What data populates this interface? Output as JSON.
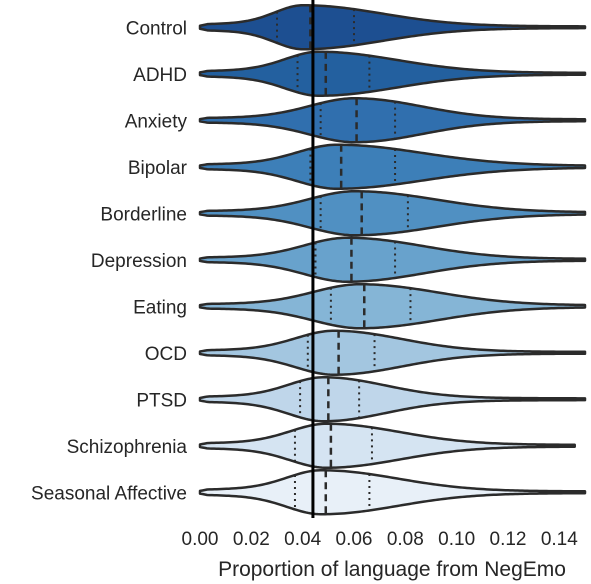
{
  "chart_data": {
    "type": "violin",
    "orientation": "horizontal",
    "xlabel": "Proportion of language from NegEmo",
    "ylabel": "",
    "xlim": [
      0.0,
      0.15
    ],
    "x_ticks": [
      "0.00",
      "0.02",
      "0.04",
      "0.06",
      "0.08",
      "0.10",
      "0.12",
      "0.14"
    ],
    "x_tick_values": [
      0.0,
      0.02,
      0.04,
      0.06,
      0.08,
      0.1,
      0.12,
      0.14
    ],
    "reference_line_x": 0.044,
    "grid": false,
    "categories": [
      "Control",
      "ADHD",
      "Anxiety",
      "Bipolar",
      "Borderline",
      "Depression",
      "Eating",
      "OCD",
      "PTSD",
      "Schizophrenia",
      "Seasonal Affective"
    ],
    "series": [
      {
        "q1": 0.03,
        "median": 0.043,
        "q3": 0.06,
        "mode": 0.04,
        "max": 0.15,
        "color": "#1d4f91"
      },
      {
        "q1": 0.038,
        "median": 0.049,
        "q3": 0.066,
        "mode": 0.046,
        "max": 0.15,
        "color": "#23609f"
      },
      {
        "q1": 0.047,
        "median": 0.061,
        "q3": 0.076,
        "mode": 0.06,
        "max": 0.15,
        "color": "#306fae"
      },
      {
        "q1": 0.043,
        "median": 0.055,
        "q3": 0.076,
        "mode": 0.053,
        "max": 0.15,
        "color": "#3d7fb8"
      },
      {
        "q1": 0.047,
        "median": 0.063,
        "q3": 0.081,
        "mode": 0.06,
        "max": 0.15,
        "color": "#5090c2"
      },
      {
        "q1": 0.045,
        "median": 0.059,
        "q3": 0.076,
        "mode": 0.057,
        "max": 0.15,
        "color": "#68a2cc"
      },
      {
        "q1": 0.051,
        "median": 0.064,
        "q3": 0.082,
        "mode": 0.062,
        "max": 0.15,
        "color": "#85b5d6"
      },
      {
        "q1": 0.042,
        "median": 0.054,
        "q3": 0.068,
        "mode": 0.052,
        "max": 0.15,
        "color": "#a3c6e0"
      },
      {
        "q1": 0.039,
        "median": 0.05,
        "q3": 0.062,
        "mode": 0.048,
        "max": 0.15,
        "color": "#bfd6ea"
      },
      {
        "q1": 0.037,
        "median": 0.051,
        "q3": 0.067,
        "mode": 0.049,
        "max": 0.146,
        "color": "#d5e4f2"
      },
      {
        "q1": 0.037,
        "median": 0.049,
        "q3": 0.066,
        "mode": 0.047,
        "max": 0.15,
        "color": "#e8f0f8"
      }
    ]
  }
}
